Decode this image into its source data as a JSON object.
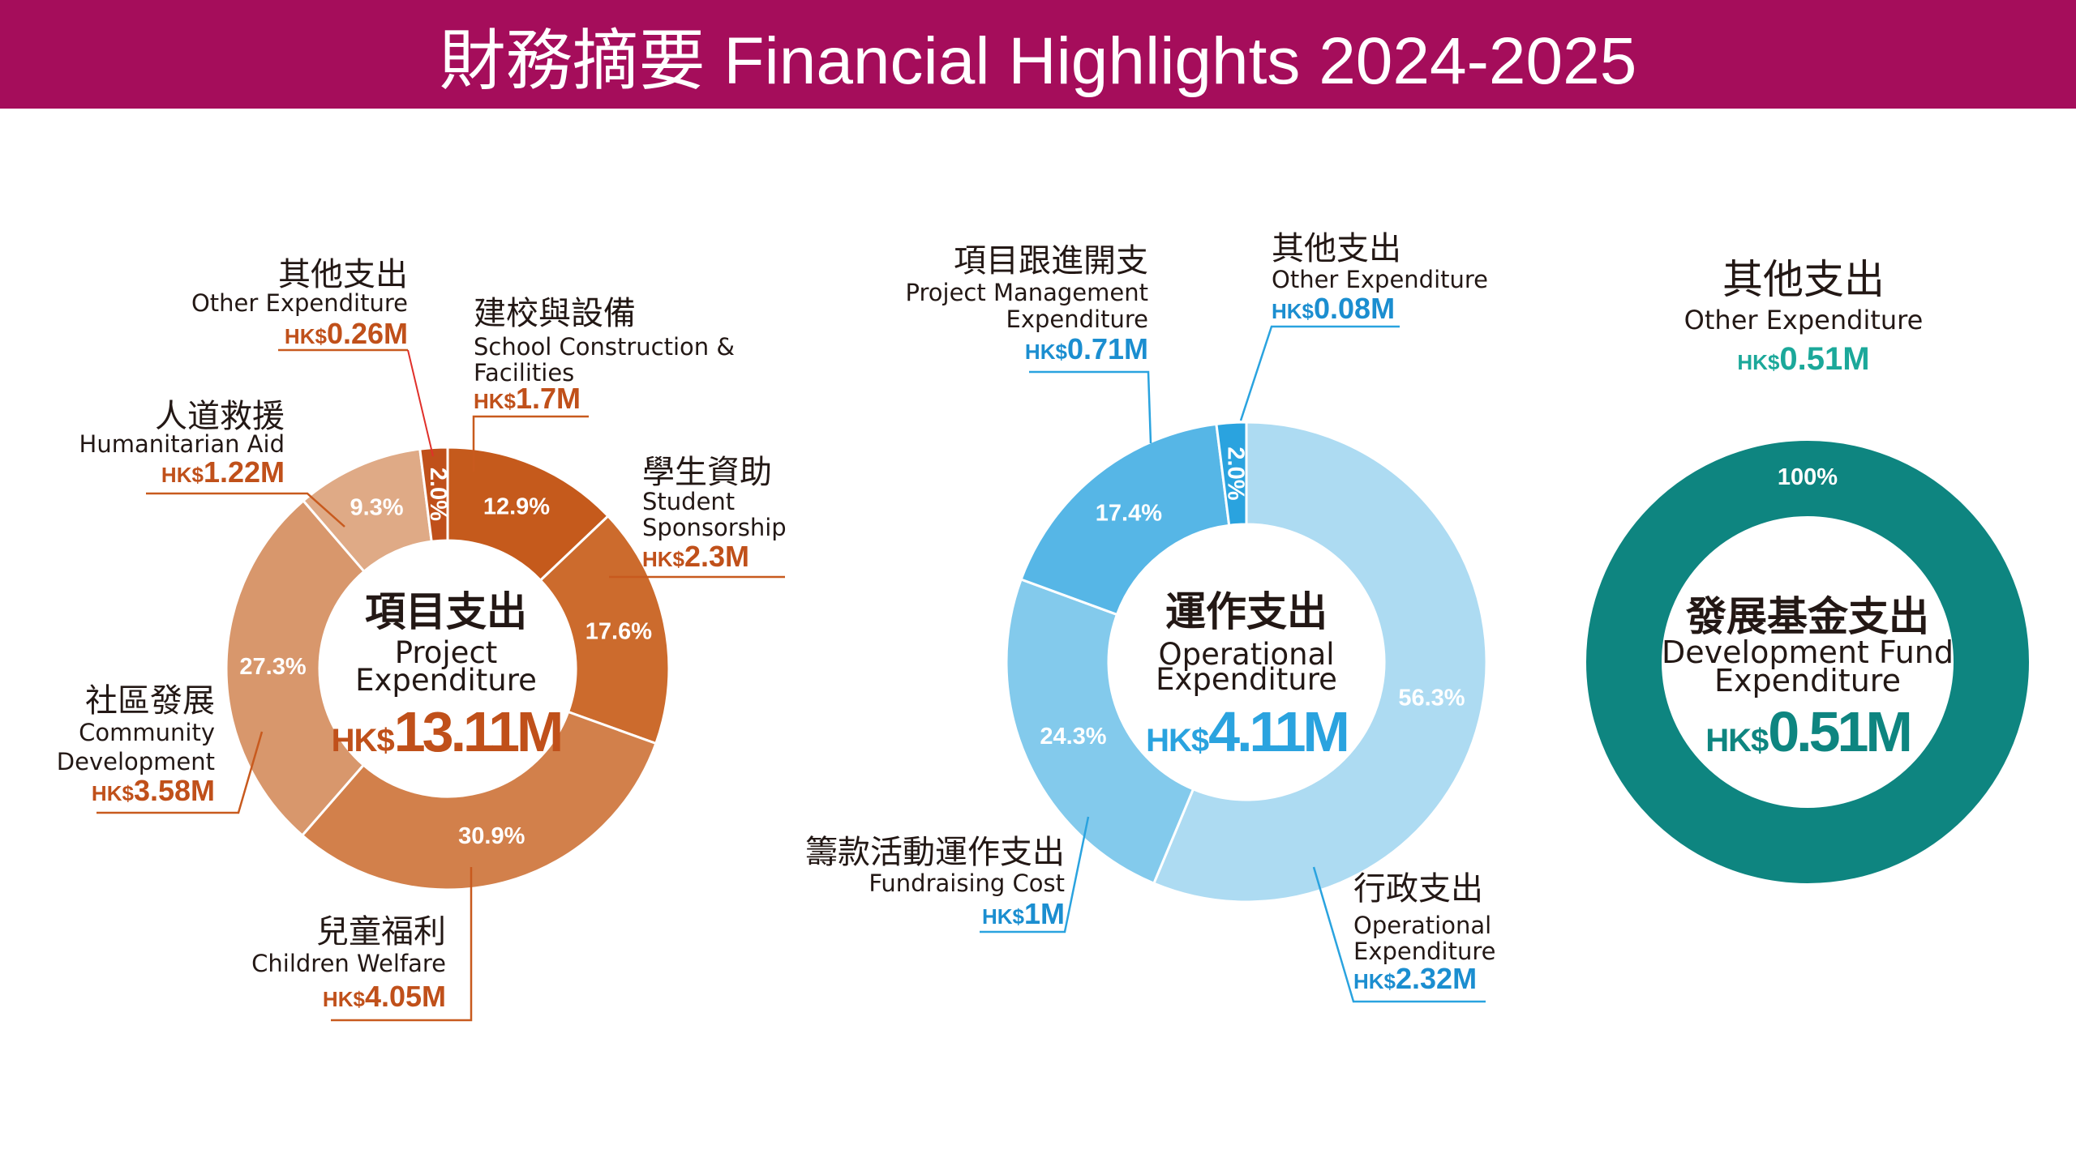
{
  "title": "財務摘要 Financial Highlights 2024-2025",
  "currency": "HK$",
  "chart_data": [
    {
      "type": "pie",
      "title_zh": "項目支出",
      "title_en1": "Project",
      "title_en2": "Expenditure",
      "total": "13.11M",
      "color": "#C0501A",
      "slices": [
        {
          "zh": "建校與設備",
          "en1": "School Construction &",
          "en2": "Facilities",
          "amount": "1.7M",
          "value": 12.9,
          "label": "12.9%",
          "color": "#C55A1C"
        },
        {
          "zh": "學生資助",
          "en1": "Student",
          "en2": "Sponsorship",
          "amount": "2.3M",
          "value": 17.6,
          "label": "17.6%",
          "color": "#CC6B2D"
        },
        {
          "zh": "兒童福利",
          "en1": "Children Welfare",
          "amount": "4.05M",
          "value": 30.9,
          "label": "30.9%",
          "color": "#D2804B"
        },
        {
          "zh": "社區發展",
          "en1": "Community",
          "en2": "Development",
          "amount": "3.58M",
          "value": 27.3,
          "label": "27.3%",
          "color": "#D8976C"
        },
        {
          "zh": "人道救援",
          "en1": "Humanitarian Aid",
          "amount": "1.22M",
          "value": 9.3,
          "label": "9.3%",
          "color": "#DFAA86"
        },
        {
          "zh": "其他支出",
          "en1": "Other Expenditure",
          "amount": "0.26M",
          "value": 2.0,
          "label": "2.0%",
          "color": "#C0501A"
        }
      ]
    },
    {
      "type": "pie",
      "title_zh": "運作支出",
      "title_en1": "Operational",
      "title_en2": "Expenditure",
      "total": "4.11M",
      "color": "#2AA3DF",
      "slices": [
        {
          "zh": "行政支出",
          "en1": "Operational",
          "en2": "Expenditure",
          "amount": "2.32M",
          "value": 56.3,
          "label": "56.3%",
          "color": "#ADDBF2"
        },
        {
          "zh": "籌款活動運作支出",
          "en1": "Fundraising Cost",
          "amount": "1M",
          "value": 24.3,
          "label": "24.3%",
          "color": "#83CAEC"
        },
        {
          "zh": "項目跟進開支",
          "en1": "Project Management",
          "en2": "Expenditure",
          "amount": "0.71M",
          "value": 17.4,
          "label": "17.4%",
          "color": "#56B6E6"
        },
        {
          "zh": "其他支出",
          "en1": "Other Expenditure",
          "amount": "0.08M",
          "value": 2.0,
          "label": "2.0%",
          "color": "#2AA3DF"
        }
      ]
    },
    {
      "type": "pie",
      "title_zh": "發展基金支出",
      "title_en1": "Development Fund",
      "title_en2": "Expenditure",
      "total": "0.51M",
      "color": "#0E8580",
      "slices": [
        {
          "zh": "其他支出",
          "en1": "Other Expenditure",
          "amount": "0.51M",
          "value": 100,
          "label": "100%",
          "color": "#0E8580"
        }
      ]
    }
  ]
}
